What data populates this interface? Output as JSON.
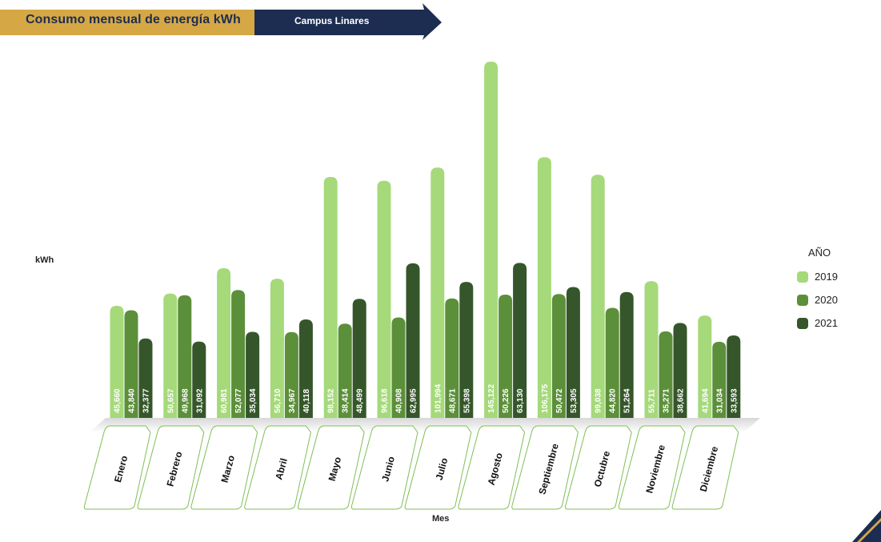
{
  "header": {
    "title": "Consumo mensual de energía kWh",
    "subtitle": "Campus Linares",
    "colors": {
      "gold": "#d6a845",
      "navy": "#1d2d52"
    }
  },
  "chart_data": {
    "type": "bar",
    "ylabel": "kWh",
    "xlabel": "Mes",
    "legend_title": "AÑO",
    "legend_position": "right",
    "grid": false,
    "ylim": [
      0,
      150000
    ],
    "categories": [
      "Enero",
      "Febrero",
      "Marzo",
      "Abril",
      "Mayo",
      "Junio",
      "Julio",
      "Agosto",
      "Septiembre",
      "Octubre",
      "Noviembre",
      "Diciembre"
    ],
    "series": [
      {
        "name": "2019",
        "color": "#a5d97a",
        "values": [
          45660,
          50657,
          60981,
          56710,
          98152,
          96618,
          101994,
          145122,
          106175,
          99038,
          55711,
          41694
        ],
        "labels": [
          "45,660",
          "50,657",
          "60,981",
          "56,710",
          "98,152",
          "96,618",
          "101,994",
          "145,122",
          "106,175",
          "99,038",
          "55,711",
          "41,694"
        ]
      },
      {
        "name": "2020",
        "color": "#5c8f3a",
        "values": [
          43840,
          49968,
          52077,
          34967,
          38414,
          40908,
          48671,
          50226,
          50472,
          44820,
          35271,
          31034
        ],
        "labels": [
          "43,840",
          "49,968",
          "52,077",
          "34,967",
          "38,414",
          "40,908",
          "48,671",
          "50,226",
          "50,472",
          "44,820",
          "35,271",
          "31,034"
        ]
      },
      {
        "name": "2021",
        "color": "#35562a",
        "values": [
          32377,
          31092,
          35034,
          40118,
          48499,
          62995,
          55398,
          63130,
          53305,
          51264,
          38662,
          33593
        ],
        "labels": [
          "32,377",
          "31,092",
          "35,034",
          "40,118",
          "48,499",
          "62,995",
          "55,398",
          "63,130",
          "53,305",
          "51,264",
          "38,662",
          "33,593"
        ]
      }
    ]
  }
}
